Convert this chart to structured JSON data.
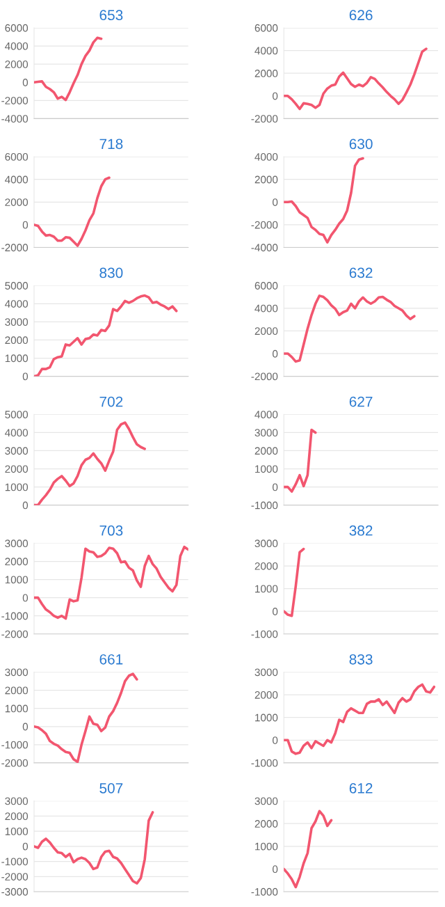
{
  "chart_data": [
    {
      "type": "line",
      "title": "653",
      "color": "#f2566f",
      "grid": "y",
      "tick_labels": "y",
      "marker": "none",
      "line_style": "solid",
      "ylim": [
        -4000,
        6000
      ],
      "yticks": [
        -4000,
        -2000,
        0,
        2000,
        4000,
        6000
      ],
      "categories": [
        null,
        null,
        null,
        null,
        null,
        null,
        null,
        null,
        null,
        null,
        null,
        null,
        null,
        null,
        null,
        null,
        null,
        null,
        null,
        null,
        null,
        null,
        null,
        null,
        null,
        null,
        null,
        null,
        null,
        null,
        null,
        null,
        null,
        null,
        null,
        null,
        null,
        null,
        null,
        null
      ],
      "values": [
        0,
        50,
        100,
        -500,
        -750,
        -1100,
        -1800,
        -1600,
        -1950,
        -1100,
        -100,
        800,
        2000,
        2900,
        3500,
        4400,
        4900,
        4800,
        null,
        null,
        null,
        null,
        null,
        null,
        null,
        null,
        null,
        null,
        null,
        null,
        null,
        null,
        null,
        null,
        null,
        null,
        null,
        null,
        null,
        null
      ]
    },
    {
      "type": "line",
      "title": "626",
      "color": "#f2566f",
      "grid": "y",
      "tick_labels": "y",
      "marker": "none",
      "line_style": "solid",
      "ylim": [
        -2000,
        6000
      ],
      "yticks": [
        -2000,
        0,
        2000,
        4000,
        6000
      ],
      "categories": [
        null,
        null,
        null,
        null,
        null,
        null,
        null,
        null,
        null,
        null,
        null,
        null,
        null,
        null,
        null,
        null,
        null,
        null,
        null,
        null,
        null,
        null,
        null,
        null,
        null,
        null,
        null,
        null,
        null,
        null,
        null,
        null,
        null,
        null,
        null,
        null,
        null,
        null,
        null,
        null
      ],
      "values": [
        0,
        0,
        -300,
        -700,
        -1150,
        -650,
        -700,
        -800,
        -1050,
        -800,
        200,
        650,
        900,
        1000,
        1700,
        2050,
        1550,
        1050,
        800,
        1000,
        850,
        1150,
        1650,
        1500,
        1100,
        750,
        350,
        0,
        -300,
        -700,
        -350,
        300,
        1000,
        1900,
        2900,
        3900,
        4150,
        null,
        null,
        null
      ]
    },
    {
      "type": "line",
      "title": "718",
      "color": "#f2566f",
      "grid": "y",
      "tick_labels": "y",
      "marker": "none",
      "line_style": "solid",
      "ylim": [
        -2000,
        6000
      ],
      "yticks": [
        -2000,
        0,
        2000,
        4000,
        6000
      ],
      "categories": [
        null,
        null,
        null,
        null,
        null,
        null,
        null,
        null,
        null,
        null,
        null,
        null,
        null,
        null,
        null,
        null,
        null,
        null,
        null,
        null,
        null,
        null,
        null,
        null,
        null,
        null,
        null,
        null,
        null,
        null,
        null,
        null,
        null,
        null,
        null,
        null,
        null,
        null,
        null,
        null
      ],
      "values": [
        0,
        -100,
        -600,
        -950,
        -900,
        -1050,
        -1400,
        -1400,
        -1100,
        -1150,
        -1500,
        -1850,
        -1250,
        -500,
        400,
        1000,
        2350,
        3400,
        4000,
        4150,
        null,
        null,
        null,
        null,
        null,
        null,
        null,
        null,
        null,
        null,
        null,
        null,
        null,
        null,
        null,
        null,
        null,
        null,
        null,
        null
      ]
    },
    {
      "type": "line",
      "title": "630",
      "color": "#f2566f",
      "grid": "y",
      "tick_labels": "y",
      "marker": "none",
      "line_style": "solid",
      "ylim": [
        -4000,
        4000
      ],
      "yticks": [
        -4000,
        -2000,
        0,
        2000,
        4000
      ],
      "categories": [
        null,
        null,
        null,
        null,
        null,
        null,
        null,
        null,
        null,
        null,
        null,
        null,
        null,
        null,
        null,
        null,
        null,
        null,
        null,
        null,
        null,
        null,
        null,
        null,
        null,
        null,
        null,
        null,
        null,
        null,
        null,
        null,
        null,
        null,
        null,
        null,
        null,
        null,
        null,
        null
      ],
      "values": [
        0,
        0,
        50,
        -350,
        -900,
        -1150,
        -1400,
        -2200,
        -2450,
        -2800,
        -2900,
        -3550,
        -2900,
        -2450,
        -1900,
        -1500,
        -750,
        800,
        3200,
        3750,
        3850,
        null,
        null,
        null,
        null,
        null,
        null,
        null,
        null,
        null,
        null,
        null,
        null,
        null,
        null,
        null,
        null,
        null,
        null,
        null
      ]
    },
    {
      "type": "line",
      "title": "830",
      "color": "#f2566f",
      "grid": "y",
      "tick_labels": "y",
      "marker": "none",
      "line_style": "solid",
      "ylim": [
        0,
        5000
      ],
      "yticks": [
        0,
        1000,
        2000,
        3000,
        4000,
        5000
      ],
      "categories": [
        null,
        null,
        null,
        null,
        null,
        null,
        null,
        null,
        null,
        null,
        null,
        null,
        null,
        null,
        null,
        null,
        null,
        null,
        null,
        null,
        null,
        null,
        null,
        null,
        null,
        null,
        null,
        null,
        null,
        null,
        null,
        null,
        null,
        null,
        null,
        null,
        null,
        null,
        null,
        null
      ],
      "values": [
        0,
        50,
        400,
        400,
        500,
        950,
        1050,
        1100,
        1750,
        1700,
        1900,
        2100,
        1750,
        2050,
        2100,
        2300,
        2250,
        2550,
        2500,
        2800,
        3700,
        3600,
        3850,
        4150,
        4050,
        4150,
        4300,
        4400,
        4450,
        4350,
        4050,
        4100,
        3950,
        3850,
        3700,
        3850,
        3600,
        null,
        null,
        null
      ]
    },
    {
      "type": "line",
      "title": "632",
      "color": "#f2566f",
      "grid": "y",
      "tick_labels": "y",
      "marker": "none",
      "line_style": "solid",
      "ylim": [
        -2000,
        6000
      ],
      "yticks": [
        -2000,
        0,
        2000,
        4000,
        6000
      ],
      "categories": [
        null,
        null,
        null,
        null,
        null,
        null,
        null,
        null,
        null,
        null,
        null,
        null,
        null,
        null,
        null,
        null,
        null,
        null,
        null,
        null,
        null,
        null,
        null,
        null,
        null,
        null,
        null,
        null,
        null,
        null,
        null,
        null,
        null,
        null,
        null,
        null,
        null,
        null,
        null,
        null
      ],
      "values": [
        0,
        0,
        -300,
        -700,
        -600,
        800,
        2200,
        3400,
        4400,
        5100,
        5000,
        4700,
        4250,
        3950,
        3400,
        3650,
        3800,
        4400,
        4000,
        4600,
        4950,
        4600,
        4400,
        4600,
        4950,
        5000,
        4750,
        4550,
        4200,
        4000,
        3800,
        3350,
        3050,
        3300,
        null,
        null,
        null,
        null,
        null,
        null
      ]
    },
    {
      "type": "line",
      "title": "702",
      "color": "#f2566f",
      "grid": "y",
      "tick_labels": "y",
      "marker": "none",
      "line_style": "solid",
      "ylim": [
        0,
        5000
      ],
      "yticks": [
        0,
        1000,
        2000,
        3000,
        4000,
        5000
      ],
      "categories": [
        null,
        null,
        null,
        null,
        null,
        null,
        null,
        null,
        null,
        null,
        null,
        null,
        null,
        null,
        null,
        null,
        null,
        null,
        null,
        null,
        null,
        null,
        null,
        null,
        null,
        null,
        null,
        null,
        null,
        null,
        null,
        null,
        null,
        null,
        null,
        null,
        null,
        null,
        null,
        null
      ],
      "values": [
        0,
        0,
        300,
        550,
        850,
        1250,
        1450,
        1600,
        1350,
        1050,
        1200,
        1600,
        2200,
        2500,
        2600,
        2850,
        2550,
        2300,
        1900,
        2450,
        2950,
        4150,
        4450,
        4550,
        4200,
        3750,
        3350,
        3200,
        3100,
        null,
        null,
        null,
        null,
        null,
        null,
        null,
        null,
        null,
        null,
        null
      ]
    },
    {
      "type": "line",
      "title": "627",
      "color": "#f2566f",
      "grid": "y",
      "tick_labels": "y",
      "marker": "none",
      "line_style": "solid",
      "ylim": [
        -1000,
        4000
      ],
      "yticks": [
        -1000,
        0,
        1000,
        2000,
        3000,
        4000
      ],
      "categories": [
        null,
        null,
        null,
        null,
        null,
        null,
        null,
        null,
        null,
        null,
        null,
        null,
        null,
        null,
        null,
        null,
        null,
        null,
        null,
        null,
        null,
        null,
        null,
        null,
        null,
        null,
        null,
        null,
        null,
        null,
        null,
        null,
        null,
        null,
        null,
        null,
        null,
        null,
        null,
        null
      ],
      "values": [
        0,
        0,
        -250,
        150,
        650,
        50,
        650,
        3150,
        3000,
        null,
        null,
        null,
        null,
        null,
        null,
        null,
        null,
        null,
        null,
        null,
        null,
        null,
        null,
        null,
        null,
        null,
        null,
        null,
        null,
        null,
        null,
        null,
        null,
        null,
        null,
        null,
        null,
        null,
        null,
        null
      ]
    },
    {
      "type": "line",
      "title": "703",
      "color": "#f2566f",
      "grid": "y",
      "tick_labels": "y",
      "marker": "none",
      "line_style": "solid",
      "ylim": [
        -2000,
        3000
      ],
      "yticks": [
        -2000,
        -1000,
        0,
        1000,
        2000,
        3000
      ],
      "categories": [
        null,
        null,
        null,
        null,
        null,
        null,
        null,
        null,
        null,
        null,
        null,
        null,
        null,
        null,
        null,
        null,
        null,
        null,
        null,
        null,
        null,
        null,
        null,
        null,
        null,
        null,
        null,
        null,
        null,
        null,
        null,
        null,
        null,
        null,
        null,
        null,
        null,
        null,
        null,
        null
      ],
      "values": [
        0,
        0,
        -350,
        -650,
        -800,
        -1000,
        -1100,
        -1000,
        -1150,
        -100,
        -200,
        -150,
        1100,
        2700,
        2550,
        2500,
        2250,
        2300,
        2450,
        2750,
        2700,
        2450,
        1950,
        2000,
        1650,
        1500,
        950,
        600,
        1750,
        2300,
        1850,
        1600,
        1150,
        850,
        550,
        350,
        700,
        2300,
        2800,
        2650
      ]
    },
    {
      "type": "line",
      "title": "382",
      "color": "#f2566f",
      "grid": "y",
      "tick_labels": "y",
      "marker": "none",
      "line_style": "solid",
      "ylim": [
        -1000,
        3000
      ],
      "yticks": [
        -1000,
        0,
        1000,
        2000,
        3000
      ],
      "categories": [
        null,
        null,
        null,
        null,
        null,
        null,
        null,
        null,
        null,
        null,
        null,
        null,
        null,
        null,
        null,
        null,
        null,
        null,
        null,
        null,
        null,
        null,
        null,
        null,
        null,
        null,
        null,
        null,
        null,
        null,
        null,
        null,
        null,
        null,
        null,
        null,
        null,
        null,
        null,
        null
      ],
      "values": [
        0,
        -150,
        -200,
        1100,
        2600,
        2750,
        null,
        null,
        null,
        null,
        null,
        null,
        null,
        null,
        null,
        null,
        null,
        null,
        null,
        null,
        null,
        null,
        null,
        null,
        null,
        null,
        null,
        null,
        null,
        null,
        null,
        null,
        null,
        null,
        null,
        null,
        null,
        null,
        null,
        null
      ]
    },
    {
      "type": "line",
      "title": "661",
      "color": "#f2566f",
      "grid": "y",
      "tick_labels": "y",
      "marker": "none",
      "line_style": "solid",
      "ylim": [
        -2000,
        3000
      ],
      "yticks": [
        -2000,
        -1000,
        0,
        1000,
        2000,
        3000
      ],
      "categories": [
        null,
        null,
        null,
        null,
        null,
        null,
        null,
        null,
        null,
        null,
        null,
        null,
        null,
        null,
        null,
        null,
        null,
        null,
        null,
        null,
        null,
        null,
        null,
        null,
        null,
        null,
        null,
        null,
        null,
        null,
        null,
        null,
        null,
        null,
        null,
        null,
        null,
        null,
        null,
        null
      ],
      "values": [
        0,
        -50,
        -200,
        -400,
        -800,
        -950,
        -1050,
        -1250,
        -1400,
        -1450,
        -1800,
        -1950,
        -1000,
        -250,
        550,
        150,
        100,
        -250,
        -50,
        550,
        850,
        1300,
        1850,
        2500,
        2800,
        2900,
        2600,
        null,
        null,
        null,
        null,
        null,
        null,
        null,
        null,
        null,
        null,
        null,
        null,
        null
      ]
    },
    {
      "type": "line",
      "title": "833",
      "color": "#f2566f",
      "grid": "y",
      "tick_labels": "y",
      "marker": "none",
      "line_style": "solid",
      "ylim": [
        -1000,
        3000
      ],
      "yticks": [
        -1000,
        0,
        1000,
        2000,
        3000
      ],
      "categories": [
        null,
        null,
        null,
        null,
        null,
        null,
        null,
        null,
        null,
        null,
        null,
        null,
        null,
        null,
        null,
        null,
        null,
        null,
        null,
        null,
        null,
        null,
        null,
        null,
        null,
        null,
        null,
        null,
        null,
        null,
        null,
        null,
        null,
        null,
        null,
        null,
        null,
        null,
        null,
        null
      ],
      "values": [
        0,
        0,
        -500,
        -600,
        -550,
        -250,
        -100,
        -350,
        -50,
        -150,
        -250,
        0,
        -100,
        300,
        900,
        800,
        1250,
        1400,
        1300,
        1200,
        1200,
        1600,
        1700,
        1700,
        1800,
        1550,
        1700,
        1450,
        1200,
        1650,
        1850,
        1700,
        1800,
        2150,
        2350,
        2450,
        2150,
        2100,
        2350,
        null
      ]
    },
    {
      "type": "line",
      "title": "507",
      "color": "#f2566f",
      "grid": "y",
      "tick_labels": "y",
      "marker": "none",
      "line_style": "solid",
      "ylim": [
        -3000,
        3000
      ],
      "yticks": [
        -3000,
        -2000,
        -1000,
        0,
        1000,
        2000,
        3000
      ],
      "categories": [
        null,
        null,
        null,
        null,
        null,
        null,
        null,
        null,
        null,
        null,
        null,
        null,
        null,
        null,
        null,
        null,
        null,
        null,
        null,
        null,
        null,
        null,
        null,
        null,
        null,
        null,
        null,
        null,
        null,
        null,
        null,
        null,
        null,
        null,
        null,
        null,
        null,
        null,
        null,
        null
      ],
      "values": [
        0,
        -100,
        300,
        500,
        250,
        -100,
        -400,
        -450,
        -700,
        -500,
        -1050,
        -850,
        -750,
        -850,
        -1100,
        -1500,
        -1400,
        -700,
        -350,
        -300,
        -700,
        -800,
        -1100,
        -1500,
        -1900,
        -2300,
        -2450,
        -2100,
        -850,
        1700,
        2250,
        null,
        null,
        null,
        null,
        null,
        null,
        null,
        null,
        null
      ]
    },
    {
      "type": "line",
      "title": "612",
      "color": "#f2566f",
      "grid": "y",
      "tick_labels": "y",
      "marker": "none",
      "line_style": "solid",
      "ylim": [
        -1000,
        3000
      ],
      "yticks": [
        -1000,
        0,
        1000,
        2000,
        3000
      ],
      "categories": [
        null,
        null,
        null,
        null,
        null,
        null,
        null,
        null,
        null,
        null,
        null,
        null,
        null,
        null,
        null,
        null,
        null,
        null,
        null,
        null,
        null,
        null,
        null,
        null,
        null,
        null,
        null,
        null,
        null,
        null,
        null,
        null,
        null,
        null,
        null,
        null,
        null,
        null,
        null,
        null
      ],
      "values": [
        0,
        -200,
        -450,
        -800,
        -350,
        250,
        700,
        1800,
        2100,
        2550,
        2350,
        1900,
        2150,
        null,
        null,
        null,
        null,
        null,
        null,
        null,
        null,
        null,
        null,
        null,
        null,
        null,
        null,
        null,
        null,
        null,
        null,
        null,
        null,
        null,
        null,
        null,
        null,
        null,
        null,
        null
      ]
    }
  ]
}
